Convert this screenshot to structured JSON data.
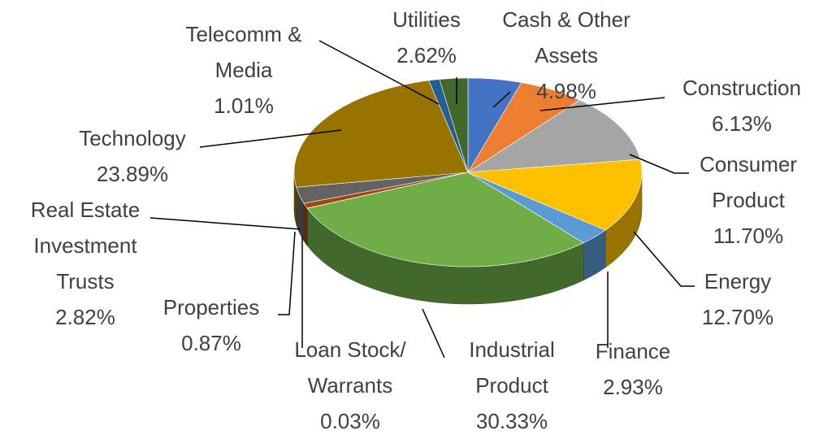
{
  "chart_data": {
    "type": "pie",
    "categories": [
      "Cash & Other Assets",
      "Construction",
      "Consumer Product",
      "Energy",
      "Finance",
      "Industrial Product",
      "Loan Stock/ Warrants",
      "Properties",
      "Real Estate Investment Trusts",
      "Technology",
      "Telecomm & Media",
      "Utilities"
    ],
    "values": [
      4.98,
      6.13,
      11.7,
      12.7,
      2.93,
      30.33,
      0.03,
      0.87,
      2.82,
      23.89,
      1.01,
      2.62
    ],
    "value_labels": [
      "4.98%",
      "6.13%",
      "11.70%",
      "12.70%",
      "2.93%",
      "30.33%",
      "0.03%",
      "0.87%",
      "2.82%",
      "23.89%",
      "1.01%",
      "2.62%"
    ],
    "colors": [
      "#4472c4",
      "#ed7d31",
      "#a5a5a5",
      "#ffc000",
      "#5b9bd5",
      "#70ad47",
      "#264478",
      "#9e480e",
      "#636363",
      "#997300",
      "#255e91",
      "#43682b"
    ]
  }
}
